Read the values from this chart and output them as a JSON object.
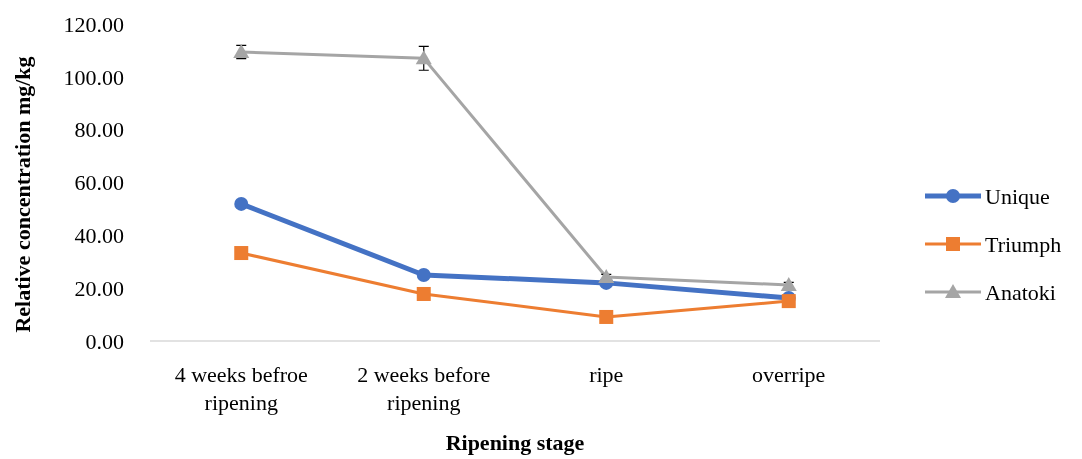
{
  "chart_data": {
    "type": "line",
    "xlabel": "Ripening stage",
    "ylabel": "Relative concentration mg/kg",
    "categories": [
      "4 weeks befroe ripening",
      "2 weeks before ripening",
      "ripe",
      "overripe"
    ],
    "ylim": [
      0,
      120
    ],
    "yticks": [
      {
        "value": 0,
        "label": "0.00"
      },
      {
        "value": 20,
        "label": "20.00"
      },
      {
        "value": 40,
        "label": "40.00"
      },
      {
        "value": 60,
        "label": "60.00"
      },
      {
        "value": 80,
        "label": "80.00"
      },
      {
        "value": 100,
        "label": "100.00"
      },
      {
        "value": 120,
        "label": "120.00"
      }
    ],
    "grid": false,
    "legend": "right",
    "series": [
      {
        "name": "Unique",
        "color": "#4472c4",
        "values": [
          51.9,
          25,
          22,
          16.3
        ],
        "marker": "circle"
      },
      {
        "name": "Triumph",
        "color": "#ed7d31",
        "values": [
          33.3,
          17.8,
          9.1,
          15.1
        ],
        "marker": "square"
      },
      {
        "name": "Anatoki",
        "color": "#a5a5a5",
        "values": [
          109.4,
          107,
          24.2,
          21.2
        ],
        "marker": "triangle",
        "errors": [
          2.5,
          4.5,
          1,
          1
        ]
      }
    ]
  }
}
